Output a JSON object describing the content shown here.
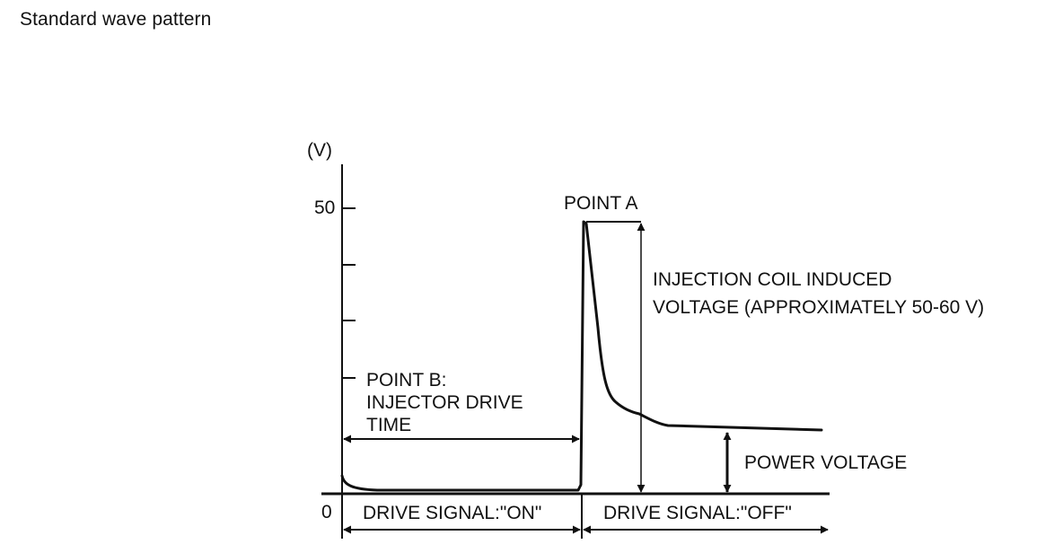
{
  "title": "Standard wave pattern",
  "colors": {
    "ink": "#111111",
    "background": "#ffffff"
  },
  "y_axis": {
    "unit_label": "(V)",
    "max_label": "50",
    "zero_label": "0"
  },
  "labels": {
    "point_a": "POINT A",
    "induced_voltage": [
      "INJECTION COIL INDUCED",
      "VOLTAGE (APPROXIMATELY 50-60 V)"
    ],
    "point_b": [
      "POINT B:",
      "INJECTOR DRIVE",
      "TIME"
    ],
    "power_voltage": "POWER VOLTAGE",
    "drive_on": "DRIVE SIGNAL:\"ON\"",
    "drive_off": "DRIVE SIGNAL:\"OFF\""
  }
}
